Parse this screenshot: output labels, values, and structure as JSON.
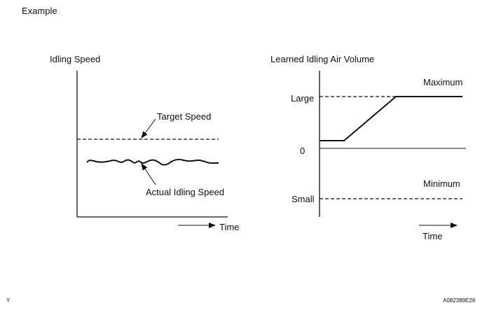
{
  "header": {
    "example_label": "Example"
  },
  "left_chart": {
    "title": "Idling Speed",
    "target_label": "Target Speed",
    "actual_label": "Actual Idling Speed",
    "time_label": "Time"
  },
  "right_chart": {
    "title": "Learned Idling Air Volume",
    "maximum_label": "Maximum",
    "minimum_label": "Minimum",
    "large_label": "Large",
    "zero_label": "0",
    "small_label": "Small",
    "time_label": "Time"
  },
  "footer": {
    "left_code": "Y",
    "figure_id": "A082389E26"
  },
  "style": {
    "line_color": "#111111"
  }
}
